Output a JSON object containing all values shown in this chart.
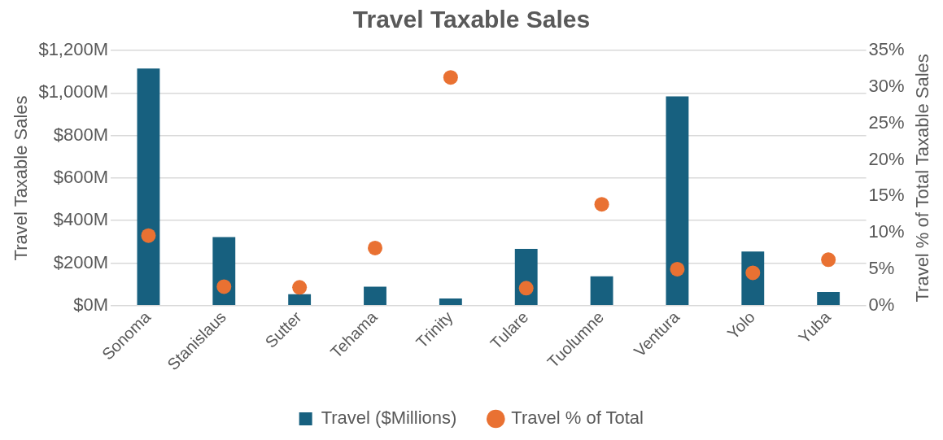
{
  "chart_data": {
    "type": "bar",
    "title": "Travel Taxable Sales",
    "ylabel": "Travel Taxable Sales",
    "y2label": "Travel % of Total Taxable Sales",
    "categories": [
      "Sonoma",
      "Stanislaus",
      "Sutter",
      "Tehama",
      "Trinity",
      "Tulare",
      "Tuolumne",
      "Ventura",
      "Yolo",
      "Yuba"
    ],
    "series": [
      {
        "name": "Travel ($Millions)",
        "color": "#17607f",
        "values": [
          1115,
          322,
          54,
          89,
          34,
          267,
          138,
          984,
          254,
          64
        ]
      },
      {
        "name": "Travel % of Total",
        "type": "scatter",
        "axis": "y2",
        "color": "#e97132",
        "marker": "circle",
        "values": [
          9.6,
          2.6,
          2.5,
          7.9,
          31.3,
          2.4,
          13.9,
          5.0,
          4.5,
          6.3
        ]
      }
    ],
    "ylim": [
      0,
      1200
    ],
    "yticks": [
      {
        "value": 0,
        "label": "$0M"
      },
      {
        "value": 200,
        "label": "$200M"
      },
      {
        "value": 400,
        "label": "$400M"
      },
      {
        "value": 600,
        "label": "$600M"
      },
      {
        "value": 800,
        "label": "$800M"
      },
      {
        "value": 1000,
        "label": "$1,000M"
      },
      {
        "value": 1200,
        "label": "$1,200M"
      }
    ],
    "y2lim": [
      0,
      35
    ],
    "y2ticks": [
      {
        "value": 0,
        "label": "0%"
      },
      {
        "value": 5,
        "label": "5%"
      },
      {
        "value": 10,
        "label": "10%"
      },
      {
        "value": 15,
        "label": "15%"
      },
      {
        "value": 20,
        "label": "20%"
      },
      {
        "value": 25,
        "label": "25%"
      },
      {
        "value": 30,
        "label": "30%"
      },
      {
        "value": 35,
        "label": "35%"
      }
    ],
    "grid": "y",
    "legend": "bottom"
  }
}
